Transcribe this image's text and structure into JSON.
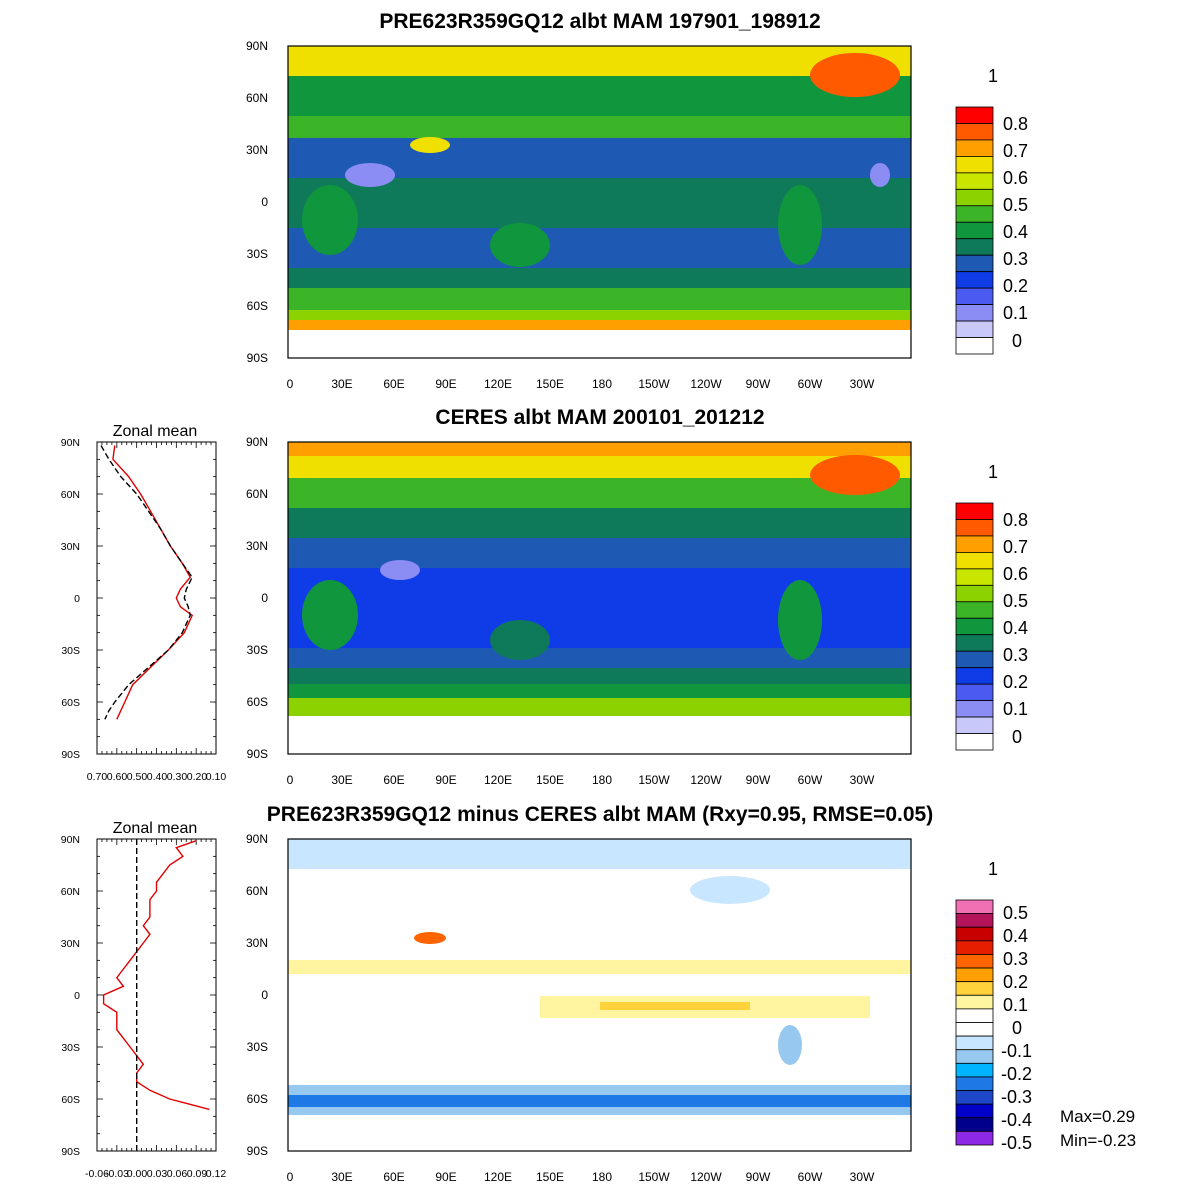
{
  "chart_data": [
    {
      "type": "heatmap",
      "title": "PRE623R359GQ12 albt MAM 197901_198912",
      "lon_ticks": [
        "0",
        "30E",
        "60E",
        "90E",
        "120E",
        "150E",
        "180",
        "150W",
        "120W",
        "90W",
        "60W",
        "30W"
      ],
      "lat_ticks": [
        "90N",
        "60N",
        "30N",
        "0",
        "30S",
        "60S",
        "90S"
      ],
      "colorbar": {
        "unit": "1",
        "labels": [
          "0.8",
          "0.7",
          "0.6",
          "0.5",
          "0.4",
          "0.3",
          "0.2",
          "0.1",
          "0"
        ],
        "colors": [
          "#ff0000",
          "#ff5a00",
          "#ffa000",
          "#f0e000",
          "#c8e600",
          "#8cd200",
          "#3cb428",
          "#10963c",
          "#0f7a5a",
          "#1e5ab4",
          "#0f3ce6",
          "#4b5af0",
          "#8c8cf5",
          "#c8c8fa",
          "#ffffff"
        ]
      }
    },
    {
      "type": "heatmap",
      "title": "CERES albt MAM 200101_201212",
      "lon_ticks": [
        "0",
        "30E",
        "60E",
        "90E",
        "120E",
        "150E",
        "180",
        "150W",
        "120W",
        "90W",
        "60W",
        "30W"
      ],
      "lat_ticks": [
        "90N",
        "60N",
        "30N",
        "0",
        "30S",
        "60S",
        "90S"
      ],
      "colorbar": {
        "unit": "1",
        "labels": [
          "0.8",
          "0.7",
          "0.6",
          "0.5",
          "0.4",
          "0.3",
          "0.2",
          "0.1",
          "0"
        ],
        "colors": [
          "#ff0000",
          "#ff5a00",
          "#ffa000",
          "#f0e000",
          "#c8e600",
          "#8cd200",
          "#3cb428",
          "#10963c",
          "#0f7a5a",
          "#1e5ab4",
          "#0f3ce6",
          "#4b5af0",
          "#8c8cf5",
          "#c8c8fa",
          "#ffffff"
        ]
      },
      "zonal_mean": {
        "title": "Zonal mean",
        "x_ticks": [
          "0.70",
          "0.60",
          "0.50",
          "0.40",
          "0.30",
          "0.20",
          "0.10"
        ],
        "y_ticks": [
          "90N",
          "60N",
          "30N",
          "0",
          "30S",
          "60S",
          "90S"
        ],
        "xlim": [
          0.7,
          0.1
        ],
        "series": [
          {
            "color": "#e00000",
            "dash": "none",
            "lat": [
              88,
              80,
              70,
              60,
              50,
              40,
              30,
              20,
              12,
              5,
              0,
              -5,
              -10,
              -20,
              -30,
              -40,
              -50,
              -60,
              -65,
              -70
            ],
            "values": [
              0.61,
              0.62,
              0.54,
              0.48,
              0.43,
              0.38,
              0.33,
              0.27,
              0.23,
              0.28,
              0.3,
              0.28,
              0.22,
              0.26,
              0.34,
              0.43,
              0.52,
              0.56,
              0.58,
              0.6
            ]
          },
          {
            "color": "#000000",
            "dash": "6,3",
            "lat": [
              88,
              80,
              70,
              60,
              50,
              40,
              30,
              20,
              12,
              5,
              0,
              -5,
              -10,
              -20,
              -30,
              -40,
              -50,
              -60,
              -65,
              -70
            ],
            "values": [
              0.68,
              0.64,
              0.58,
              0.5,
              0.44,
              0.38,
              0.33,
              0.27,
              0.22,
              0.25,
              0.26,
              0.24,
              0.23,
              0.27,
              0.34,
              0.44,
              0.54,
              0.61,
              0.64,
              0.66
            ]
          }
        ]
      }
    },
    {
      "type": "heatmap",
      "title": "PRE623R359GQ12 minus CERES albt MAM (Rxy=0.95, RMSE=0.05)",
      "lon_ticks": [
        "0",
        "30E",
        "60E",
        "90E",
        "120E",
        "150E",
        "180",
        "150W",
        "120W",
        "90W",
        "60W",
        "30W"
      ],
      "lat_ticks": [
        "90N",
        "60N",
        "30N",
        "0",
        "30S",
        "60S",
        "90S"
      ],
      "colorbar": {
        "unit": "1",
        "labels": [
          "0.5",
          "0.4",
          "0.3",
          "0.2",
          "0.1",
          "0",
          "-0.1",
          "-0.2",
          "-0.3",
          "-0.4",
          "-0.5"
        ],
        "colors": [
          "#f070b4",
          "#b4145a",
          "#c80000",
          "#e61e00",
          "#ff6400",
          "#ffa000",
          "#ffd23c",
          "#fff5a0",
          "#ffffff",
          "#ffffff",
          "#c8e6ff",
          "#96c8f0",
          "#00b4ff",
          "#1e78e6",
          "#1e46c8",
          "#0000c8",
          "#00008c",
          "#8c28e6"
        ]
      },
      "stats": {
        "max": "Max=0.29",
        "min": "Min=-0.23"
      },
      "zonal_mean": {
        "title": "Zonal mean",
        "x_ticks": [
          "-0.06",
          "-0.03",
          "0.00",
          "0.03",
          "0.06",
          "0.09",
          "0.12"
        ],
        "y_ticks": [
          "90N",
          "60N",
          "30N",
          "0",
          "30S",
          "60S",
          "90S"
        ],
        "xlim": [
          -0.06,
          0.12
        ],
        "series": [
          {
            "color": "#e00000",
            "dash": "none",
            "lat": [
              89,
              85,
              80,
              75,
              70,
              65,
              60,
              55,
              50,
              45,
              40,
              35,
              30,
              25,
              20,
              15,
              10,
              5,
              0,
              -5,
              -10,
              -15,
              -20,
              -25,
              -30,
              -35,
              -40,
              -45,
              -50,
              -55,
              -60,
              -63,
              -66
            ],
            "values": [
              0.09,
              0.06,
              0.07,
              0.05,
              0.04,
              0.03,
              0.03,
              0.02,
              0.02,
              0.02,
              0.01,
              0.02,
              0.01,
              0.0,
              -0.01,
              -0.02,
              -0.03,
              -0.02,
              -0.05,
              -0.05,
              -0.03,
              -0.03,
              -0.03,
              -0.02,
              -0.01,
              0.0,
              0.01,
              0.0,
              0.0,
              0.02,
              0.05,
              0.08,
              0.11
            ]
          },
          {
            "color": "#000000",
            "dash": "6,3",
            "lat": [
              90,
              -90
            ],
            "values": [
              0.0,
              0.0
            ]
          }
        ]
      }
    }
  ]
}
